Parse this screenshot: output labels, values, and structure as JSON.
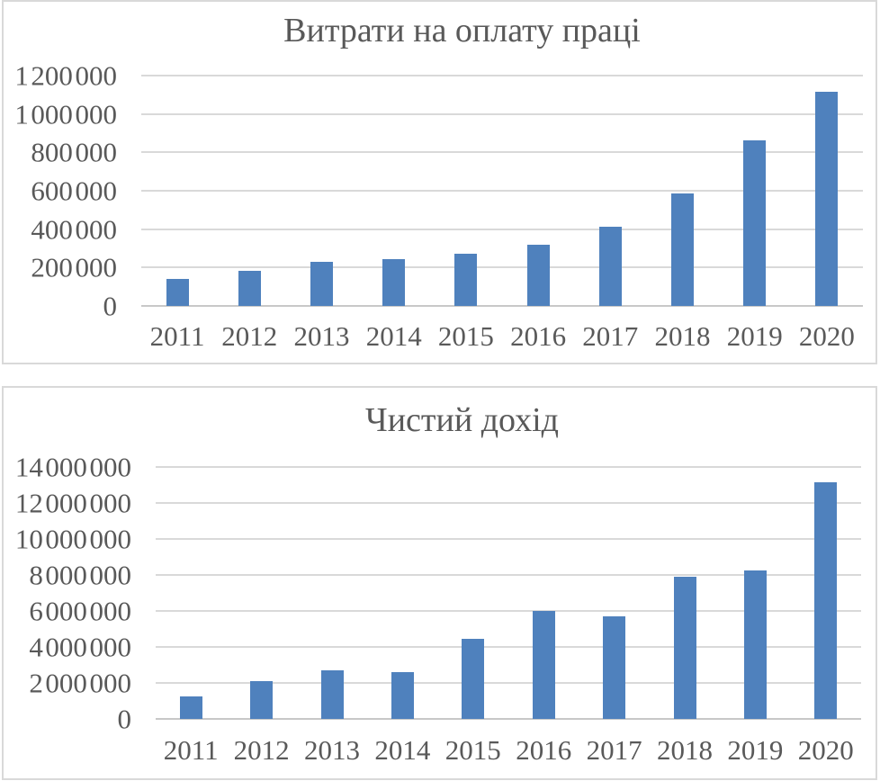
{
  "styles": {
    "bar_color": "#4F81BD",
    "text_color": "#595959",
    "gridline_color": "#d9d9d9",
    "axis_line_color": "#c8c8c8",
    "panel_border_color": "#d9d9d9",
    "background": "#ffffff"
  },
  "chart_data": [
    {
      "type": "bar",
      "title": "Витрати на оплату праці",
      "categories": [
        "2011",
        "2012",
        "2013",
        "2014",
        "2015",
        "2016",
        "2017",
        "2018",
        "2019",
        "2020"
      ],
      "values": [
        143000,
        181000,
        229000,
        242000,
        270000,
        320000,
        411000,
        584000,
        864000,
        1114000
      ],
      "xlabel": "",
      "ylabel": "",
      "ylim": [
        0,
        1200000
      ],
      "ytick_step": 200000,
      "ytick_labels": [
        "0",
        "200 000",
        "400 000",
        "600 000",
        "800 000",
        "1 000 000",
        "1 200 000"
      ],
      "grid": true,
      "legend": "none",
      "bar_color": "#4F81BD"
    },
    {
      "type": "bar",
      "title": "Чистий дохід",
      "categories": [
        "2011",
        "2012",
        "2013",
        "2014",
        "2015",
        "2016",
        "2017",
        "2018",
        "2019",
        "2020"
      ],
      "values": [
        1255000,
        2120000,
        2700000,
        2585000,
        4440000,
        5990000,
        5700000,
        7910000,
        8255000,
        13175000
      ],
      "xlabel": "",
      "ylabel": "",
      "ylim": [
        0,
        14000000
      ],
      "ytick_step": 2000000,
      "ytick_labels": [
        "0",
        "2 000 000",
        "4 000 000",
        "6 000 000",
        "8 000 000",
        "10 000 000",
        "12 000 000",
        "14 000 000"
      ],
      "grid": true,
      "legend": "none",
      "bar_color": "#4F81BD"
    }
  ]
}
